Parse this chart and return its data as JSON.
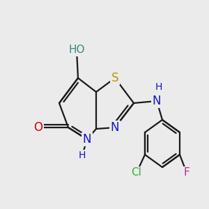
{
  "background_color": "#ebebeb",
  "figsize": [
    3.0,
    3.0
  ],
  "dpi": 100,
  "colors": {
    "bond": "#1a1a1a",
    "S": "#b8960c",
    "N": "#1414cc",
    "O": "#cc0000",
    "OH": "#3a8a80",
    "Cl": "#2db52d",
    "F": "#cc2090",
    "H": "#1414cc"
  }
}
